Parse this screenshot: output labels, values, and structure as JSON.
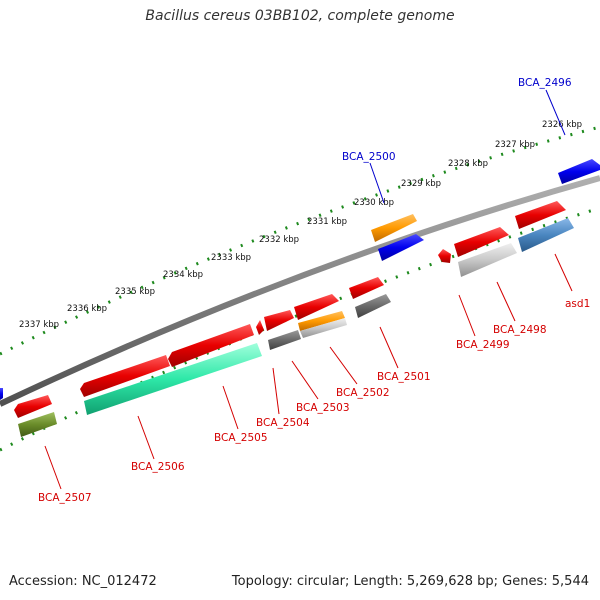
{
  "title": "Bacillus cereus 03BB102, complete genome",
  "accession": "Accession: NC_012472",
  "topology": "Topology: circular; Length: 5,269,628 bp; Genes: 5,544",
  "colors": {
    "backbone": "#808080",
    "tick_dots": "#1e8a1e",
    "label_red": "#d40000",
    "label_blue": "#0000cc"
  },
  "kbp_ticks": [
    "2326 kbp",
    "2327 kbp",
    "2328 kbp",
    "2329 kbp",
    "2330 kbp",
    "2331 kbp",
    "2332 kbp",
    "2333 kbp",
    "2334 kbp",
    "2335 kbp",
    "2336 kbp",
    "2337 kbp"
  ],
  "genes": [
    {
      "label": "BCA_2496",
      "color": "blue"
    },
    {
      "label": "BCA_2500",
      "color": "blue"
    },
    {
      "label": "asd1",
      "color": "red"
    },
    {
      "label": "BCA_2498",
      "color": "red"
    },
    {
      "label": "BCA_2499",
      "color": "red"
    },
    {
      "label": "BCA_2501",
      "color": "red"
    },
    {
      "label": "BCA_2502",
      "color": "red"
    },
    {
      "label": "BCA_2503",
      "color": "red"
    },
    {
      "label": "BCA_2504",
      "color": "red"
    },
    {
      "label": "BCA_2505",
      "color": "red"
    },
    {
      "label": "BCA_2506",
      "color": "red"
    },
    {
      "label": "BCA_2507",
      "color": "red"
    }
  ]
}
